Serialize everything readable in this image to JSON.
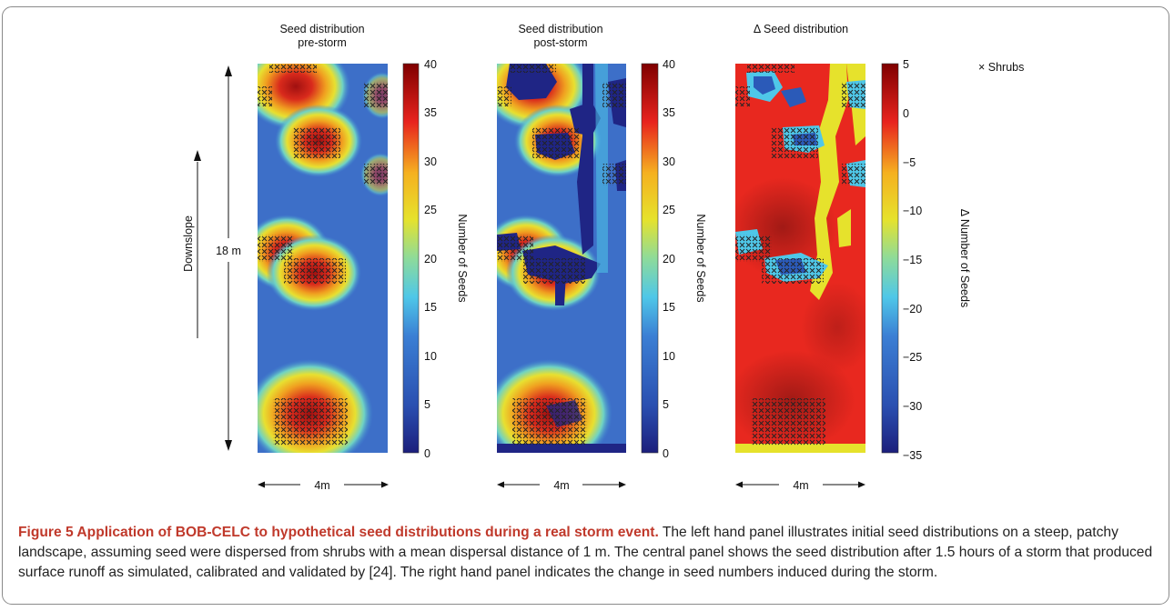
{
  "figure": {
    "panels": [
      {
        "title_line1": "Seed distribution",
        "title_line2": "pre-storm",
        "cb_label": "Number of Seeds",
        "cb_ticks": [
          "40",
          "35",
          "30",
          "25",
          "20",
          "15",
          "10",
          "5",
          "0"
        ]
      },
      {
        "title_line1": "Seed distribution",
        "title_line2": "post-storm",
        "cb_label": "Number of Seeds",
        "cb_ticks": [
          "40",
          "35",
          "30",
          "25",
          "20",
          "15",
          "10",
          "5",
          "0"
        ]
      },
      {
        "title_line1": "Δ Seed distribution",
        "title_line2": "",
        "cb_label": "Δ Number of Seeds",
        "cb_ticks": [
          "5",
          "0",
          "−5",
          "−10",
          "−15",
          "−20",
          "−25",
          "−30",
          "−35"
        ]
      }
    ],
    "legend_shrubs": "×  Shrubs",
    "downslope_label": "Downslope",
    "length_label": "18 m",
    "width_label": "4m",
    "colors": {
      "dark_red": "#7f0000",
      "red": "#e8231e",
      "yellow": "#f0e224",
      "cyan": "#4fc7e8",
      "blue": "#2b5ab8",
      "navy": "#1c1f7c"
    }
  },
  "caption": {
    "title": "Figure 5 Application of BOB-CELC to hypothetical seed distributions during a real storm event.",
    "body": " The left hand panel illustrates initial seed distributions on a steep, patchy landscape, assuming seed were dispersed from shrubs with a mean dispersal distance of 1 m. The central panel shows the seed distribution after 1.5 hours of a storm that produced surface runoff as simulated, calibrated and validated by [24]. The right hand panel indicates the change in seed numbers induced during the storm."
  }
}
